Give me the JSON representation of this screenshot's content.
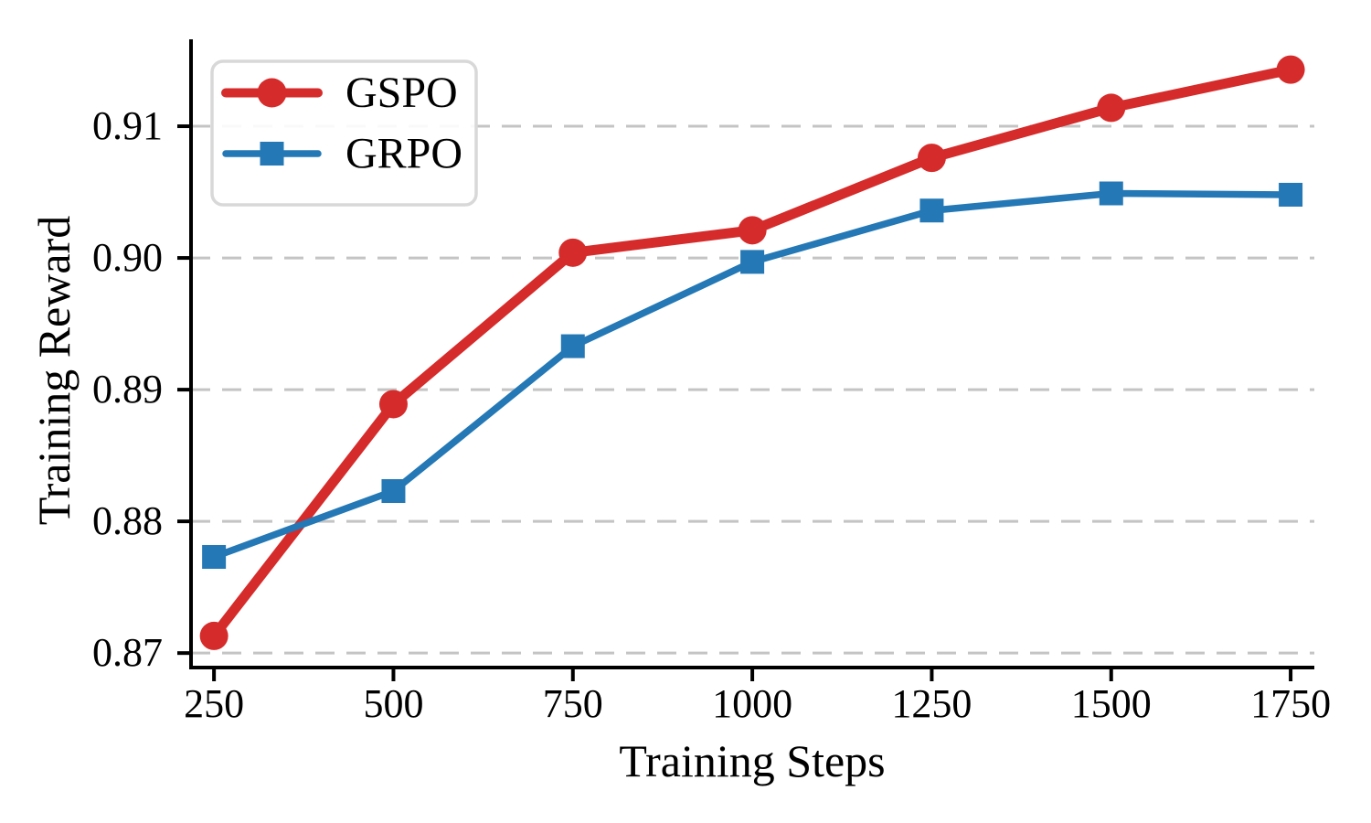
{
  "chart_data": {
    "type": "line",
    "title": "",
    "xlabel": "Training Steps",
    "ylabel": "Training Reward",
    "x": [
      250,
      500,
      750,
      1000,
      1250,
      1500,
      1750
    ],
    "series": [
      {
        "name": "GSPO",
        "color": "#d62b2b",
        "marker": "circle",
        "values": [
          0.8713,
          0.8889,
          0.9004,
          0.9021,
          0.9076,
          0.9114,
          0.9143
        ]
      },
      {
        "name": "GRPO",
        "color": "#2478b5",
        "marker": "square",
        "values": [
          0.8773,
          0.8823,
          0.8933,
          0.8997,
          0.9036,
          0.9049,
          0.9048
        ]
      }
    ],
    "xticks": [
      250,
      500,
      750,
      1000,
      1250,
      1500,
      1750
    ],
    "yticks": [
      0.87,
      0.88,
      0.89,
      0.9,
      0.91
    ],
    "xlim": [
      218,
      1783
    ],
    "ylim": [
      0.8689,
      0.9166
    ],
    "grid": "horizontal-dashed",
    "legend_position": "upper-left",
    "colors": {
      "grid": "#c4c4c4",
      "axis": "#000000",
      "legend_border": "#d8d8d8",
      "background": "#ffffff"
    }
  }
}
